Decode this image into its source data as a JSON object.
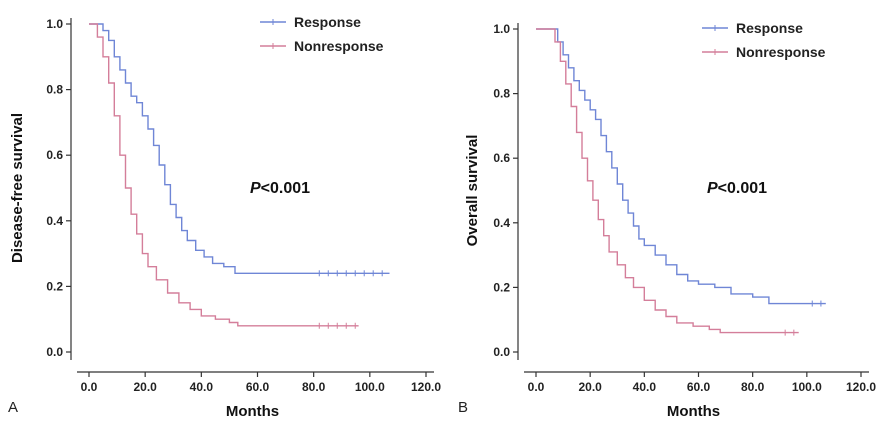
{
  "chart_data": [
    {
      "type": "line",
      "panel_label": "A",
      "xlabel": "Months",
      "ylabel": "Disease-free survival",
      "xlim": [
        0,
        120
      ],
      "ylim": [
        0,
        1
      ],
      "x_ticks": [
        "0.0",
        "20.0",
        "40.0",
        "60.0",
        "80.0",
        "100.0",
        "120.0"
      ],
      "y_ticks": [
        "0.0",
        "0.2",
        "0.4",
        "0.6",
        "0.8",
        "1.0"
      ],
      "annotation": {
        "p_symbol": "P",
        "p_rest": "<0.001"
      },
      "legend_position": "top-right",
      "series": [
        {
          "name": "Response",
          "color": "#6f86d6",
          "points": [
            [
              0,
              1.0
            ],
            [
              3,
              1.0
            ],
            [
              5,
              0.98
            ],
            [
              7,
              0.95
            ],
            [
              9,
              0.9
            ],
            [
              11,
              0.86
            ],
            [
              13,
              0.82
            ],
            [
              15,
              0.78
            ],
            [
              17,
              0.76
            ],
            [
              19,
              0.72
            ],
            [
              21,
              0.68
            ],
            [
              23,
              0.63
            ],
            [
              25,
              0.57
            ],
            [
              27,
              0.51
            ],
            [
              29,
              0.45
            ],
            [
              31,
              0.41
            ],
            [
              33,
              0.37
            ],
            [
              35,
              0.34
            ],
            [
              38,
              0.31
            ],
            [
              41,
              0.29
            ],
            [
              44,
              0.27
            ],
            [
              48,
              0.26
            ],
            [
              52,
              0.24
            ],
            [
              60,
              0.24
            ],
            [
              80,
              0.24
            ],
            [
              107,
              0.24
            ]
          ]
        },
        {
          "name": "Nonresponse",
          "color": "#d47e9a",
          "points": [
            [
              0,
              1.0
            ],
            [
              2,
              1.0
            ],
            [
              3,
              0.96
            ],
            [
              5,
              0.9
            ],
            [
              7,
              0.82
            ],
            [
              9,
              0.72
            ],
            [
              11,
              0.6
            ],
            [
              13,
              0.5
            ],
            [
              15,
              0.42
            ],
            [
              17,
              0.36
            ],
            [
              19,
              0.3
            ],
            [
              21,
              0.26
            ],
            [
              24,
              0.22
            ],
            [
              28,
              0.18
            ],
            [
              32,
              0.15
            ],
            [
              36,
              0.13
            ],
            [
              40,
              0.11
            ],
            [
              45,
              0.1
            ],
            [
              50,
              0.09
            ],
            [
              53,
              0.08
            ],
            [
              60,
              0.08
            ],
            [
              80,
              0.08
            ],
            [
              96,
              0.08
            ]
          ]
        }
      ]
    },
    {
      "type": "line",
      "panel_label": "B",
      "xlabel": "Months",
      "ylabel": "Overall survival",
      "xlim": [
        0,
        120
      ],
      "ylim": [
        0,
        1
      ],
      "x_ticks": [
        "0.0",
        "20.0",
        "40.0",
        "60.0",
        "80.0",
        "100.0",
        "120.0"
      ],
      "y_ticks": [
        "0.0",
        "0.2",
        "0.4",
        "0.6",
        "0.8",
        "1.0"
      ],
      "annotation": {
        "p_symbol": "P",
        "p_rest": "<0.001"
      },
      "legend_position": "top-right",
      "series": [
        {
          "name": "Response",
          "color": "#6f86d6",
          "points": [
            [
              0,
              1.0
            ],
            [
              6,
              1.0
            ],
            [
              8,
              0.96
            ],
            [
              10,
              0.92
            ],
            [
              12,
              0.88
            ],
            [
              14,
              0.84
            ],
            [
              16,
              0.81
            ],
            [
              18,
              0.78
            ],
            [
              20,
              0.75
            ],
            [
              22,
              0.72
            ],
            [
              24,
              0.67
            ],
            [
              26,
              0.62
            ],
            [
              28,
              0.57
            ],
            [
              30,
              0.52
            ],
            [
              32,
              0.47
            ],
            [
              34,
              0.43
            ],
            [
              36,
              0.39
            ],
            [
              38,
              0.35
            ],
            [
              40,
              0.33
            ],
            [
              44,
              0.3
            ],
            [
              48,
              0.27
            ],
            [
              52,
              0.24
            ],
            [
              56,
              0.22
            ],
            [
              60,
              0.21
            ],
            [
              66,
              0.2
            ],
            [
              72,
              0.18
            ],
            [
              80,
              0.17
            ],
            [
              86,
              0.15
            ],
            [
              100,
              0.15
            ],
            [
              107,
              0.15
            ]
          ]
        },
        {
          "name": "Nonresponse",
          "color": "#d47e9a",
          "points": [
            [
              0,
              1.0
            ],
            [
              5,
              1.0
            ],
            [
              7,
              0.96
            ],
            [
              9,
              0.9
            ],
            [
              11,
              0.83
            ],
            [
              13,
              0.76
            ],
            [
              15,
              0.68
            ],
            [
              17,
              0.6
            ],
            [
              19,
              0.53
            ],
            [
              21,
              0.47
            ],
            [
              23,
              0.41
            ],
            [
              25,
              0.36
            ],
            [
              27,
              0.31
            ],
            [
              30,
              0.27
            ],
            [
              33,
              0.23
            ],
            [
              36,
              0.2
            ],
            [
              40,
              0.16
            ],
            [
              44,
              0.13
            ],
            [
              48,
              0.11
            ],
            [
              52,
              0.09
            ],
            [
              58,
              0.08
            ],
            [
              64,
              0.07
            ],
            [
              68,
              0.06
            ],
            [
              75,
              0.06
            ],
            [
              90,
              0.06
            ],
            [
              97,
              0.06
            ]
          ]
        }
      ]
    }
  ]
}
